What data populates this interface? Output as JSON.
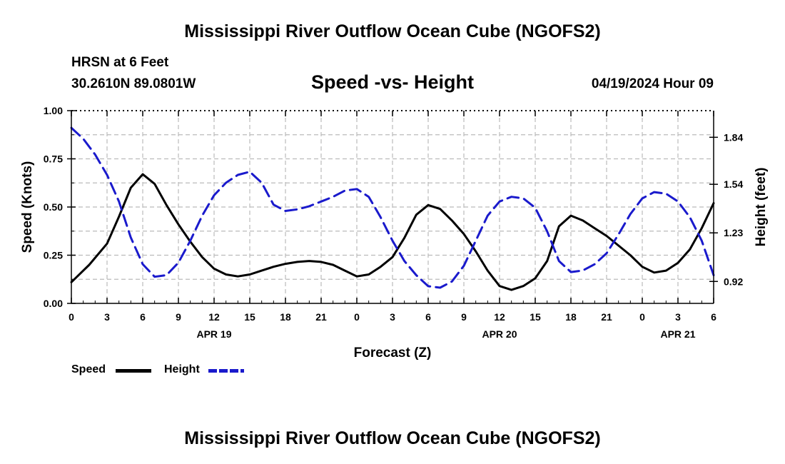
{
  "header": {
    "title": "Mississippi River Outflow Ocean Cube (NGOFS2)",
    "station": "HRSN at 6 Feet",
    "coords": "30.2610N  89.0801W",
    "subtitle": "Speed -vs- Height",
    "datetime": "04/19/2024 Hour 09",
    "footer_title": "Mississippi River Outflow Ocean Cube (NGOFS2)"
  },
  "legend": {
    "speed_label": "Speed",
    "height_label": "Height"
  },
  "colors": {
    "speed": "#000000",
    "height": "#1a1acc",
    "grid": "#bbbbbb"
  },
  "chart_data": {
    "type": "line",
    "title": "Speed -vs- Height",
    "xlabel": "Forecast (Z)",
    "ylabel": "Speed (Knots)",
    "y2label": "Height (feet)",
    "xlim": [
      0,
      54
    ],
    "ylim": [
      0,
      1
    ],
    "y2lim": [
      0.78,
      2.01
    ],
    "x_ticks": [
      0,
      3,
      6,
      9,
      12,
      15,
      18,
      21,
      24,
      27,
      30,
      33,
      36,
      39,
      42,
      45,
      48,
      51,
      54
    ],
    "x_tick_labels": [
      "0",
      "3",
      "6",
      "9",
      "12",
      "15",
      "18",
      "21",
      "0",
      "3",
      "6",
      "9",
      "12",
      "15",
      "18",
      "21",
      "0",
      "3",
      "6"
    ],
    "date_labels": [
      {
        "x": 12,
        "label": "APR 19"
      },
      {
        "x": 36,
        "label": "APR 20"
      },
      {
        "x": 51,
        "label": "APR 21"
      }
    ],
    "y_ticks": [
      0.0,
      0.25,
      0.5,
      0.75,
      1.0
    ],
    "y_tick_labels": [
      "0.00",
      "0.25",
      "0.50",
      "0.75",
      "1.00"
    ],
    "y2_ticks": [
      0.92,
      1.23,
      1.54,
      1.84
    ],
    "y2_tick_labels": [
      "0.92",
      "1.23",
      "1.54",
      "1.84"
    ],
    "grid": true,
    "series": [
      {
        "name": "Speed",
        "axis": "left",
        "style": "solid",
        "points": [
          [
            0,
            0.11
          ],
          [
            1.5,
            0.2
          ],
          [
            3,
            0.31
          ],
          [
            4,
            0.45
          ],
          [
            5,
            0.6
          ],
          [
            6,
            0.67
          ],
          [
            7,
            0.62
          ],
          [
            8,
            0.51
          ],
          [
            9,
            0.41
          ],
          [
            10,
            0.32
          ],
          [
            11,
            0.24
          ],
          [
            12,
            0.18
          ],
          [
            13,
            0.15
          ],
          [
            14,
            0.14
          ],
          [
            15,
            0.15
          ],
          [
            16,
            0.17
          ],
          [
            17,
            0.19
          ],
          [
            18,
            0.205
          ],
          [
            19,
            0.215
          ],
          [
            20,
            0.22
          ],
          [
            21,
            0.215
          ],
          [
            22,
            0.2
          ],
          [
            23,
            0.17
          ],
          [
            24,
            0.14
          ],
          [
            25,
            0.15
          ],
          [
            26,
            0.19
          ],
          [
            27,
            0.24
          ],
          [
            28,
            0.34
          ],
          [
            29,
            0.46
          ],
          [
            30,
            0.51
          ],
          [
            31,
            0.49
          ],
          [
            32,
            0.43
          ],
          [
            33,
            0.36
          ],
          [
            34,
            0.27
          ],
          [
            35,
            0.17
          ],
          [
            36,
            0.09
          ],
          [
            37,
            0.07
          ],
          [
            38,
            0.09
          ],
          [
            39,
            0.13
          ],
          [
            40,
            0.22
          ],
          [
            41,
            0.4
          ],
          [
            42,
            0.455
          ],
          [
            43,
            0.43
          ],
          [
            44,
            0.39
          ],
          [
            45,
            0.35
          ],
          [
            46,
            0.3
          ],
          [
            47,
            0.25
          ],
          [
            48,
            0.19
          ],
          [
            49,
            0.16
          ],
          [
            50,
            0.17
          ],
          [
            51,
            0.21
          ],
          [
            52,
            0.28
          ],
          [
            53,
            0.39
          ],
          [
            54,
            0.52
          ]
        ]
      },
      {
        "name": "Height",
        "axis": "right",
        "style": "dashed",
        "points": [
          [
            0,
            1.9
          ],
          [
            1,
            1.83
          ],
          [
            2,
            1.73
          ],
          [
            3,
            1.6
          ],
          [
            4,
            1.43
          ],
          [
            5,
            1.2
          ],
          [
            6,
            1.03
          ],
          [
            7,
            0.95
          ],
          [
            8,
            0.96
          ],
          [
            9,
            1.04
          ],
          [
            10,
            1.18
          ],
          [
            11,
            1.34
          ],
          [
            12,
            1.47
          ],
          [
            13,
            1.55
          ],
          [
            14,
            1.6
          ],
          [
            15,
            1.62
          ],
          [
            16,
            1.55
          ],
          [
            17,
            1.41
          ],
          [
            18,
            1.37
          ],
          [
            19,
            1.38
          ],
          [
            20,
            1.4
          ],
          [
            21,
            1.43
          ],
          [
            22,
            1.46
          ],
          [
            23,
            1.5
          ],
          [
            24,
            1.51
          ],
          [
            25,
            1.46
          ],
          [
            26,
            1.33
          ],
          [
            27,
            1.18
          ],
          [
            28,
            1.05
          ],
          [
            29,
            0.96
          ],
          [
            30,
            0.89
          ],
          [
            31,
            0.88
          ],
          [
            32,
            0.92
          ],
          [
            33,
            1.02
          ],
          [
            34,
            1.18
          ],
          [
            35,
            1.34
          ],
          [
            36,
            1.43
          ],
          [
            37,
            1.46
          ],
          [
            38,
            1.45
          ],
          [
            39,
            1.39
          ],
          [
            40,
            1.24
          ],
          [
            41,
            1.05
          ],
          [
            42,
            0.98
          ],
          [
            43,
            0.99
          ],
          [
            44,
            1.03
          ],
          [
            45,
            1.1
          ],
          [
            46,
            1.22
          ],
          [
            47,
            1.35
          ],
          [
            48,
            1.45
          ],
          [
            49,
            1.49
          ],
          [
            50,
            1.48
          ],
          [
            51,
            1.43
          ],
          [
            52,
            1.33
          ],
          [
            53,
            1.18
          ],
          [
            54,
            0.96
          ]
        ]
      }
    ]
  }
}
